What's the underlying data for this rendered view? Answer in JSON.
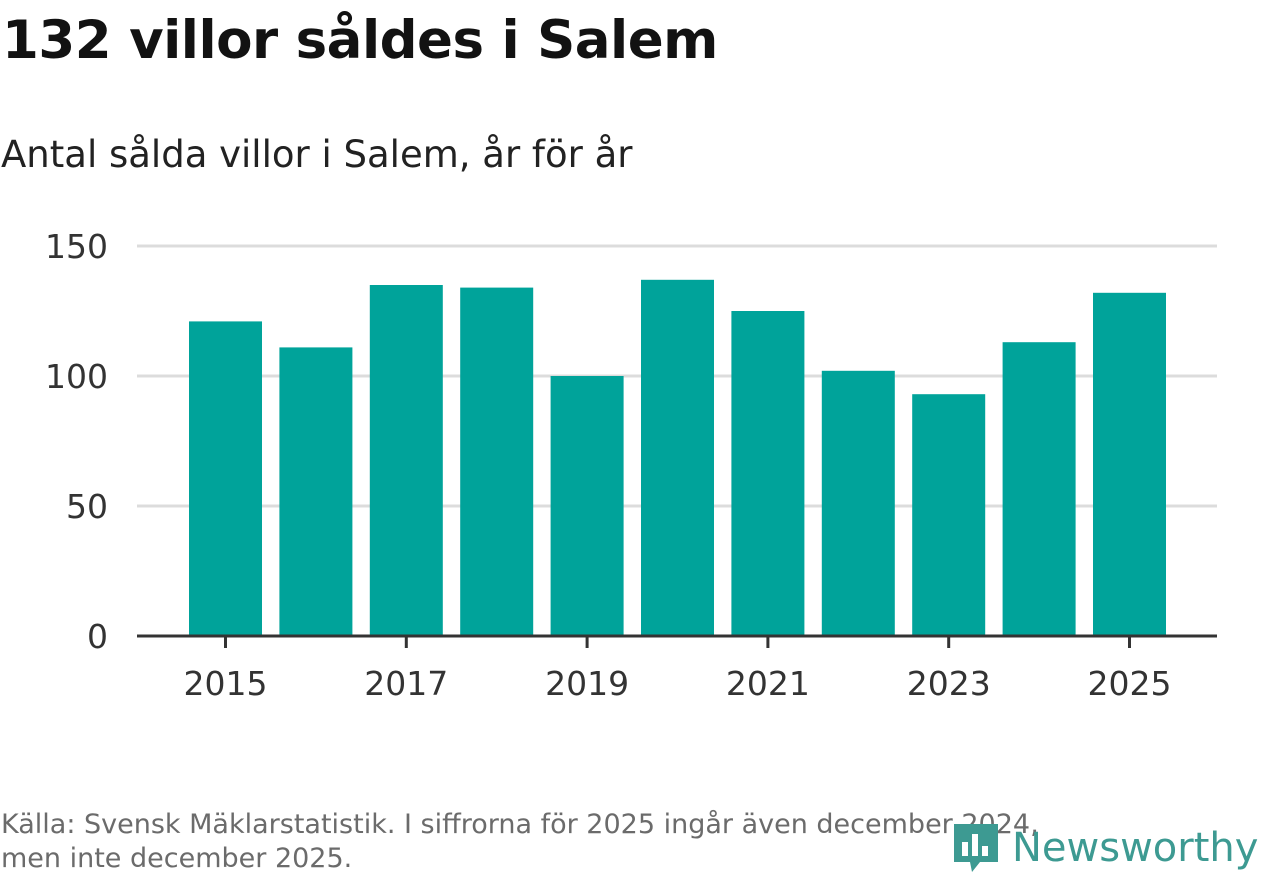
{
  "header": {
    "title": "132 villor såldes i Salem",
    "subtitle": "Antal sålda villor i Salem, år för år"
  },
  "footer": {
    "source_line1": "Källa: Svensk Mäklarstatistik. I siffrorna för 2025 ingår även december 2024,",
    "source_line2": "men inte december 2025.",
    "logo_text": "Newsworthy"
  },
  "colors": {
    "bar": "#00a39a",
    "grid": "#dcdcdc",
    "axis": "#333333",
    "logo": "#3d9a92"
  },
  "chart_data": {
    "type": "bar",
    "title": "132 villor såldes i Salem",
    "subtitle": "Antal sålda villor i Salem, år för år",
    "xlabel": "",
    "ylabel": "",
    "categories": [
      "2015",
      "2016",
      "2017",
      "2018",
      "2019",
      "2020",
      "2021",
      "2022",
      "2023",
      "2024",
      "2025"
    ],
    "values": [
      121,
      111,
      135,
      134,
      100,
      137,
      125,
      102,
      93,
      113,
      132
    ],
    "x_tick_labels": [
      "2015",
      "2017",
      "2019",
      "2021",
      "2023",
      "2025"
    ],
    "y_ticks": [
      0,
      50,
      100,
      150
    ],
    "ylim": [
      0,
      150
    ],
    "grid": true
  }
}
